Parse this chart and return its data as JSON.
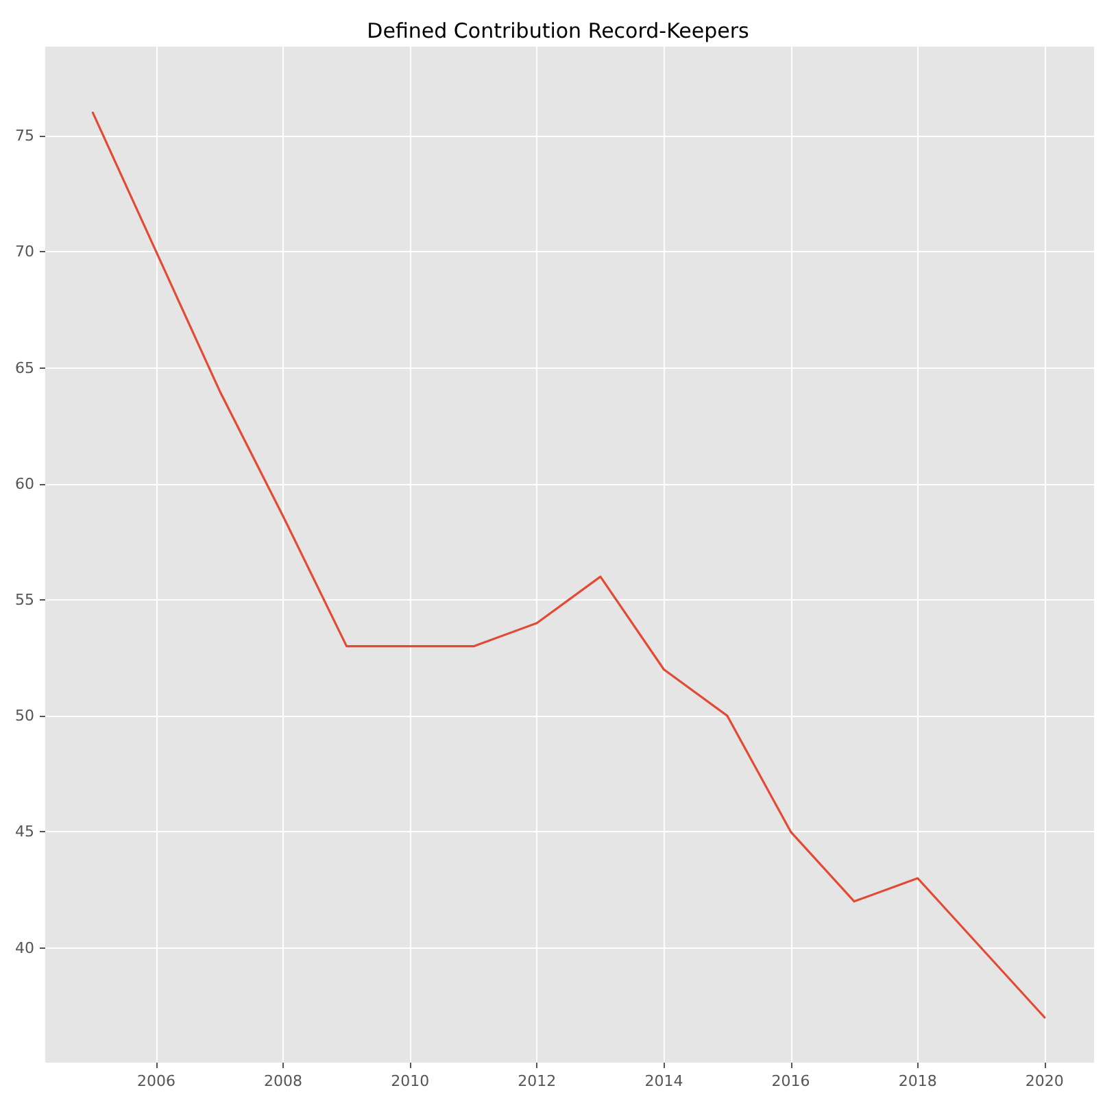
{
  "chart_data": {
    "type": "line",
    "title": "Defined Contribution Record-Keepers",
    "x": [
      2005,
      2006,
      2007,
      2008,
      2009,
      2010,
      2011,
      2012,
      2013,
      2014,
      2015,
      2016,
      2017,
      2018,
      2019,
      2020
    ],
    "series": [
      {
        "color": "#e24a33",
        "values": [
          76,
          70,
          64,
          58.6,
          53,
          53,
          53,
          54,
          56,
          52,
          50,
          45,
          42,
          43,
          40,
          37
        ]
      }
    ],
    "xlim": [
      2004.25,
      2020.78
    ],
    "xticks": [
      2006,
      2008,
      2010,
      2012,
      2014,
      2016,
      2018,
      2020
    ],
    "ylim": [
      35.05,
      78.85
    ],
    "yticks": [
      40,
      45,
      50,
      55,
      60,
      65,
      70,
      75
    ],
    "grid": true,
    "marker": "none",
    "line_style": "solid"
  }
}
